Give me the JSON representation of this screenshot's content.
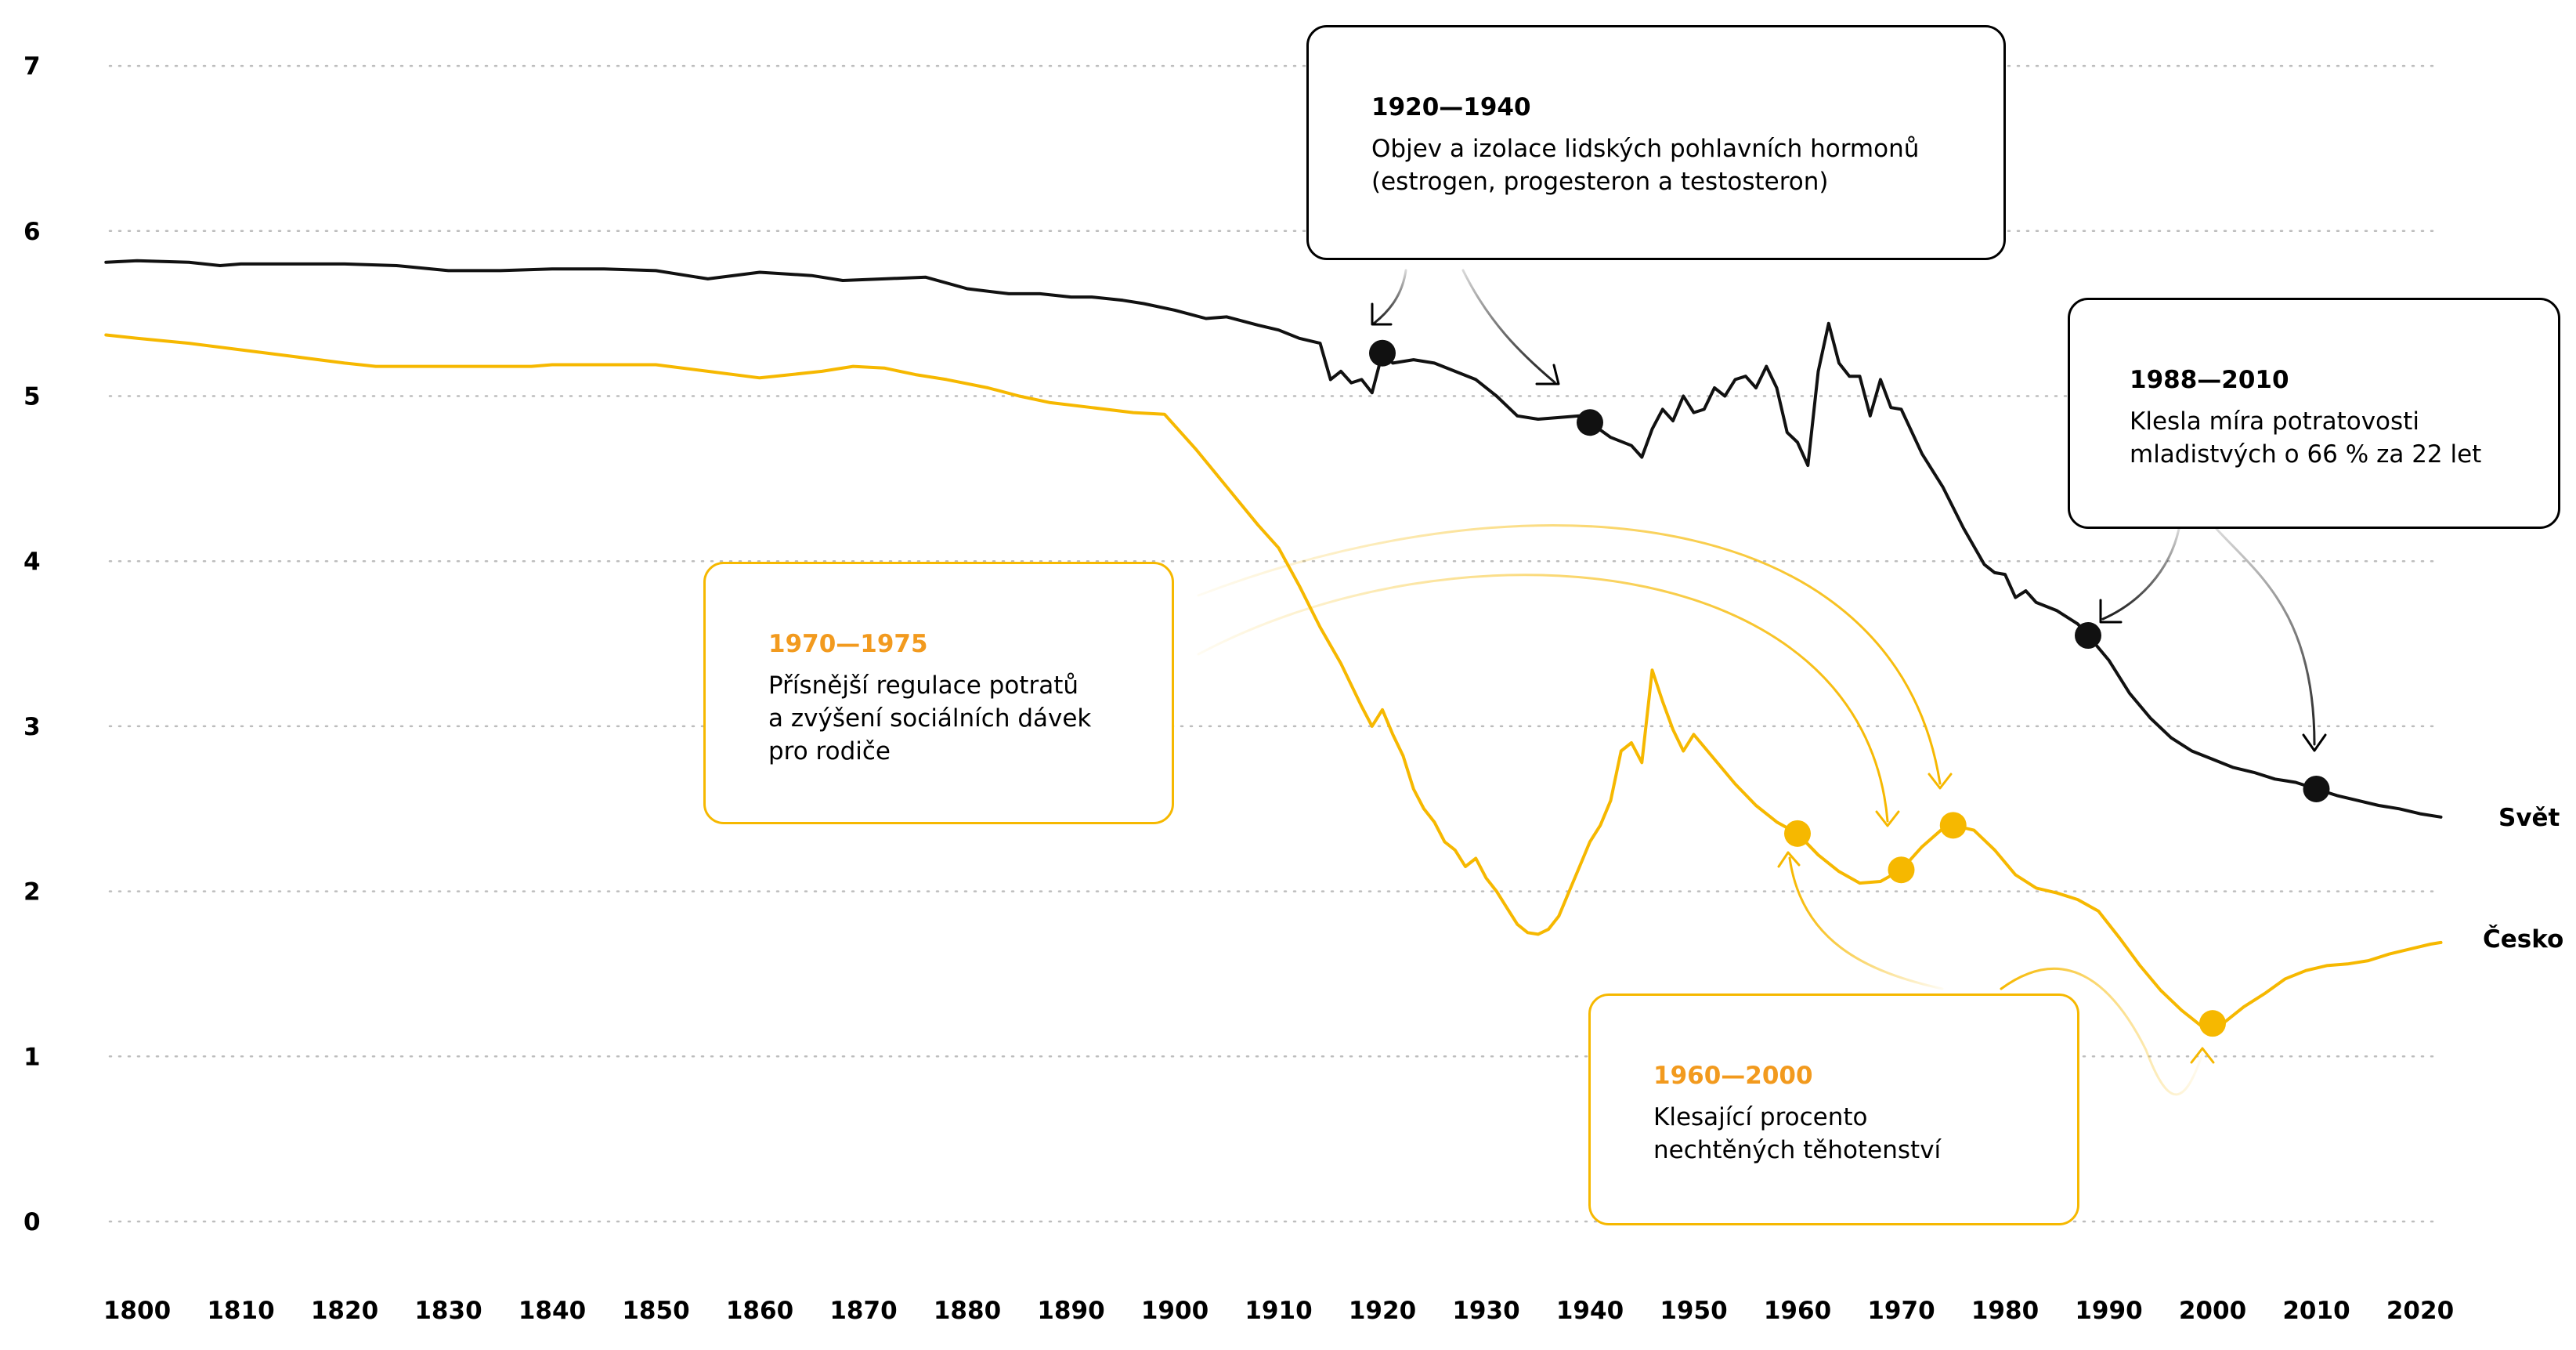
{
  "chart_data": {
    "type": "line",
    "title": "",
    "xlabel": "",
    "ylabel": "",
    "xlim": [
      1797,
      2023
    ],
    "ylim": [
      0,
      7
    ],
    "x_ticks": [
      1800,
      1810,
      1820,
      1830,
      1840,
      1850,
      1860,
      1870,
      1880,
      1890,
      1900,
      1910,
      1920,
      1930,
      1940,
      1950,
      1960,
      1970,
      1980,
      1990,
      2000,
      2010,
      2020
    ],
    "y_ticks": [
      0,
      1,
      2,
      3,
      4,
      5,
      6,
      7
    ],
    "grid": "horizontal dotted",
    "series": [
      {
        "name": "Svět",
        "color": "#111111",
        "points": [
          [
            1797,
            5.81
          ],
          [
            1800,
            5.82
          ],
          [
            1805,
            5.81
          ],
          [
            1808,
            5.79
          ],
          [
            1810,
            5.8
          ],
          [
            1820,
            5.8
          ],
          [
            1825,
            5.79
          ],
          [
            1830,
            5.76
          ],
          [
            1835,
            5.76
          ],
          [
            1840,
            5.77
          ],
          [
            1845,
            5.77
          ],
          [
            1850,
            5.76
          ],
          [
            1855,
            5.71
          ],
          [
            1860,
            5.75
          ],
          [
            1865,
            5.73
          ],
          [
            1868,
            5.7
          ],
          [
            1872,
            5.71
          ],
          [
            1876,
            5.72
          ],
          [
            1880,
            5.65
          ],
          [
            1884,
            5.62
          ],
          [
            1887,
            5.62
          ],
          [
            1890,
            5.6
          ],
          [
            1892,
            5.6
          ],
          [
            1895,
            5.58
          ],
          [
            1897,
            5.56
          ],
          [
            1900,
            5.52
          ],
          [
            1903,
            5.47
          ],
          [
            1905,
            5.48
          ],
          [
            1908,
            5.43
          ],
          [
            1910,
            5.4
          ],
          [
            1912,
            5.35
          ],
          [
            1914,
            5.32
          ],
          [
            1915,
            5.1
          ],
          [
            1916,
            5.15
          ],
          [
            1917,
            5.08
          ],
          [
            1918,
            5.1
          ],
          [
            1919,
            5.02
          ],
          [
            1920,
            5.26
          ],
          [
            1921,
            5.2
          ],
          [
            1923,
            5.22
          ],
          [
            1925,
            5.2
          ],
          [
            1927,
            5.15
          ],
          [
            1929,
            5.1
          ],
          [
            1931,
            5.0
          ],
          [
            1933,
            4.88
          ],
          [
            1935,
            4.86
          ],
          [
            1937,
            4.87
          ],
          [
            1939,
            4.88
          ],
          [
            1940,
            4.84
          ],
          [
            1942,
            4.75
          ],
          [
            1944,
            4.7
          ],
          [
            1945,
            4.63
          ],
          [
            1946,
            4.8
          ],
          [
            1947,
            4.92
          ],
          [
            1948,
            4.85
          ],
          [
            1949,
            5.0
          ],
          [
            1950,
            4.9
          ],
          [
            1951,
            4.92
          ],
          [
            1952,
            5.05
          ],
          [
            1953,
            5.0
          ],
          [
            1954,
            5.1
          ],
          [
            1955,
            5.12
          ],
          [
            1956,
            5.05
          ],
          [
            1957,
            5.18
          ],
          [
            1958,
            5.05
          ],
          [
            1959,
            4.78
          ],
          [
            1960,
            4.72
          ],
          [
            1961,
            4.58
          ],
          [
            1962,
            5.15
          ],
          [
            1963,
            5.44
          ],
          [
            1964,
            5.2
          ],
          [
            1965,
            5.12
          ],
          [
            1966,
            5.12
          ],
          [
            1967,
            4.88
          ],
          [
            1968,
            5.1
          ],
          [
            1969,
            4.93
          ],
          [
            1970,
            4.92
          ],
          [
            1972,
            4.65
          ],
          [
            1974,
            4.45
          ],
          [
            1976,
            4.2
          ],
          [
            1978,
            3.98
          ],
          [
            1979,
            3.93
          ],
          [
            1980,
            3.92
          ],
          [
            1981,
            3.78
          ],
          [
            1982,
            3.82
          ],
          [
            1983,
            3.75
          ],
          [
            1985,
            3.7
          ],
          [
            1987,
            3.62
          ],
          [
            1988,
            3.55
          ],
          [
            1990,
            3.4
          ],
          [
            1992,
            3.2
          ],
          [
            1994,
            3.05
          ],
          [
            1996,
            2.93
          ],
          [
            1998,
            2.85
          ],
          [
            2000,
            2.8
          ],
          [
            2002,
            2.75
          ],
          [
            2004,
            2.72
          ],
          [
            2006,
            2.68
          ],
          [
            2008,
            2.66
          ],
          [
            2010,
            2.62
          ],
          [
            2012,
            2.58
          ],
          [
            2014,
            2.55
          ],
          [
            2016,
            2.52
          ],
          [
            2018,
            2.5
          ],
          [
            2020,
            2.47
          ],
          [
            2022,
            2.45
          ]
        ]
      },
      {
        "name": "Česko",
        "color": "#f6b800",
        "points": [
          [
            1797,
            5.37
          ],
          [
            1800,
            5.35
          ],
          [
            1805,
            5.32
          ],
          [
            1810,
            5.28
          ],
          [
            1815,
            5.24
          ],
          [
            1820,
            5.2
          ],
          [
            1823,
            5.18
          ],
          [
            1830,
            5.18
          ],
          [
            1838,
            5.18
          ],
          [
            1840,
            5.19
          ],
          [
            1850,
            5.19
          ],
          [
            1855,
            5.15
          ],
          [
            1860,
            5.11
          ],
          [
            1863,
            5.13
          ],
          [
            1866,
            5.15
          ],
          [
            1869,
            5.18
          ],
          [
            1872,
            5.17
          ],
          [
            1875,
            5.13
          ],
          [
            1878,
            5.1
          ],
          [
            1882,
            5.05
          ],
          [
            1885,
            5.0
          ],
          [
            1888,
            4.96
          ],
          [
            1892,
            4.93
          ],
          [
            1896,
            4.9
          ],
          [
            1899,
            4.89
          ],
          [
            1902,
            4.68
          ],
          [
            1905,
            4.45
          ],
          [
            1908,
            4.22
          ],
          [
            1910,
            4.08
          ],
          [
            1912,
            3.85
          ],
          [
            1914,
            3.6
          ],
          [
            1916,
            3.38
          ],
          [
            1918,
            3.12
          ],
          [
            1919,
            3.0
          ],
          [
            1920,
            3.1
          ],
          [
            1921,
            2.95
          ],
          [
            1922,
            2.82
          ],
          [
            1923,
            2.62
          ],
          [
            1924,
            2.5
          ],
          [
            1925,
            2.42
          ],
          [
            1926,
            2.3
          ],
          [
            1927,
            2.25
          ],
          [
            1928,
            2.15
          ],
          [
            1929,
            2.2
          ],
          [
            1930,
            2.08
          ],
          [
            1931,
            2.0
          ],
          [
            1932,
            1.9
          ],
          [
            1933,
            1.8
          ],
          [
            1934,
            1.75
          ],
          [
            1935,
            1.74
          ],
          [
            1936,
            1.77
          ],
          [
            1937,
            1.85
          ],
          [
            1938,
            2.0
          ],
          [
            1939,
            2.15
          ],
          [
            1940,
            2.3
          ],
          [
            1941,
            2.4
          ],
          [
            1942,
            2.55
          ],
          [
            1943,
            2.85
          ],
          [
            1944,
            2.9
          ],
          [
            1945,
            2.78
          ],
          [
            1946,
            3.34
          ],
          [
            1947,
            3.15
          ],
          [
            1948,
            2.98
          ],
          [
            1949,
            2.85
          ],
          [
            1950,
            2.95
          ],
          [
            1952,
            2.8
          ],
          [
            1954,
            2.65
          ],
          [
            1956,
            2.52
          ],
          [
            1958,
            2.42
          ],
          [
            1960,
            2.35
          ],
          [
            1962,
            2.22
          ],
          [
            1964,
            2.12
          ],
          [
            1966,
            2.05
          ],
          [
            1968,
            2.06
          ],
          [
            1970,
            2.13
          ],
          [
            1972,
            2.27
          ],
          [
            1974,
            2.38
          ],
          [
            1975,
            2.4
          ],
          [
            1977,
            2.37
          ],
          [
            1979,
            2.25
          ],
          [
            1981,
            2.1
          ],
          [
            1983,
            2.02
          ],
          [
            1985,
            1.99
          ],
          [
            1987,
            1.95
          ],
          [
            1989,
            1.88
          ],
          [
            1991,
            1.72
          ],
          [
            1993,
            1.55
          ],
          [
            1995,
            1.4
          ],
          [
            1997,
            1.28
          ],
          [
            1999,
            1.18
          ],
          [
            2001,
            1.2
          ],
          [
            2003,
            1.3
          ],
          [
            2005,
            1.38
          ],
          [
            2007,
            1.47
          ],
          [
            2009,
            1.52
          ],
          [
            2011,
            1.55
          ],
          [
            2013,
            1.56
          ],
          [
            2015,
            1.58
          ],
          [
            2017,
            1.62
          ],
          [
            2019,
            1.65
          ],
          [
            2021,
            1.68
          ],
          [
            2022,
            1.69
          ]
        ]
      }
    ],
    "markers": [
      {
        "series": "Svět",
        "x": 1920,
        "y": 5.26
      },
      {
        "series": "Svět",
        "x": 1940,
        "y": 4.84
      },
      {
        "series": "Svět",
        "x": 1988,
        "y": 3.55
      },
      {
        "series": "Svět",
        "x": 2010,
        "y": 2.62
      },
      {
        "series": "Česko",
        "x": 1960,
        "y": 2.35
      },
      {
        "series": "Česko",
        "x": 1970,
        "y": 2.13
      },
      {
        "series": "Česko",
        "x": 1975,
        "y": 2.4
      },
      {
        "series": "Česko",
        "x": 2000,
        "y": 1.2
      }
    ],
    "annotations": [
      {
        "id": "a1",
        "title": "1920—1940",
        "text": "Objev a izolace lidských pohlavních hormonů\n(estrogen, progesteron a testosteron)"
      },
      {
        "id": "a2",
        "title": "1988—2010",
        "text": "Klesla míra potratovosti\nmladistvých o 66 % za 22 let"
      },
      {
        "id": "a3",
        "title": "1970—1975",
        "text": "Přísnější regulace potratů\na zvýšení sociálních dávek\npro rodiče"
      },
      {
        "id": "a4",
        "title": "1960—2000",
        "text": "Klesající procento\nnechtěných těhotenství"
      }
    ]
  }
}
